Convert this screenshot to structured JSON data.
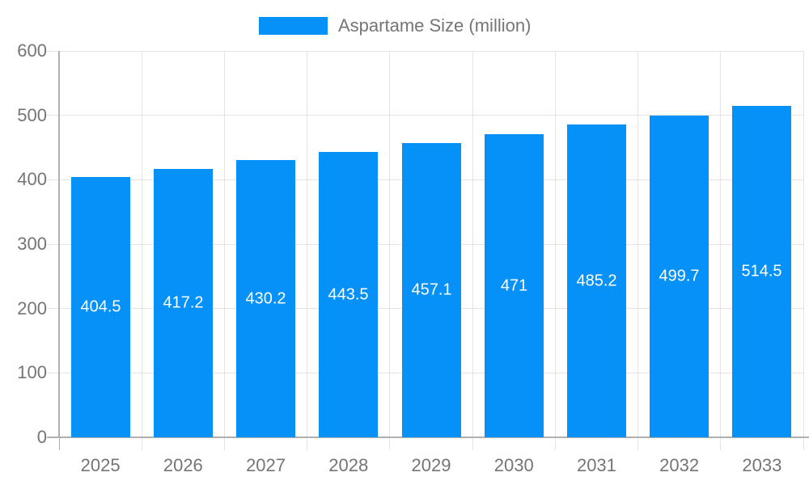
{
  "chart_data": {
    "type": "bar",
    "title": "",
    "legend": "Aspartame Size (million)",
    "legend_position": "top",
    "categories": [
      "2025",
      "2026",
      "2027",
      "2028",
      "2029",
      "2030",
      "2031",
      "2032",
      "2033"
    ],
    "series": [
      {
        "name": "Aspartame Size (million)",
        "values": [
          404.5,
          417.2,
          430.2,
          443.5,
          457.1,
          471,
          485.2,
          499.7,
          514.5
        ],
        "labels": [
          "404.5",
          "417.2",
          "430.2",
          "443.5",
          "457.1",
          "471",
          "485.2",
          "499.7",
          "514.5"
        ]
      }
    ],
    "xlabel": "",
    "ylabel": "",
    "ylim": [
      0,
      600
    ],
    "yticks": [
      0,
      100,
      200,
      300,
      400,
      500,
      600
    ],
    "ytick_labels": [
      "0",
      "100",
      "200",
      "300",
      "400",
      "500",
      "600"
    ],
    "grid": true,
    "data_labels_position": "inside-center",
    "colors": {
      "bar": "#0591f8",
      "bar_label_text": "#ffffff",
      "axis_text": "#757575",
      "legend_text": "#757575",
      "gridline": "#e3e3e3",
      "axis_line": "#b0b0b0"
    }
  }
}
